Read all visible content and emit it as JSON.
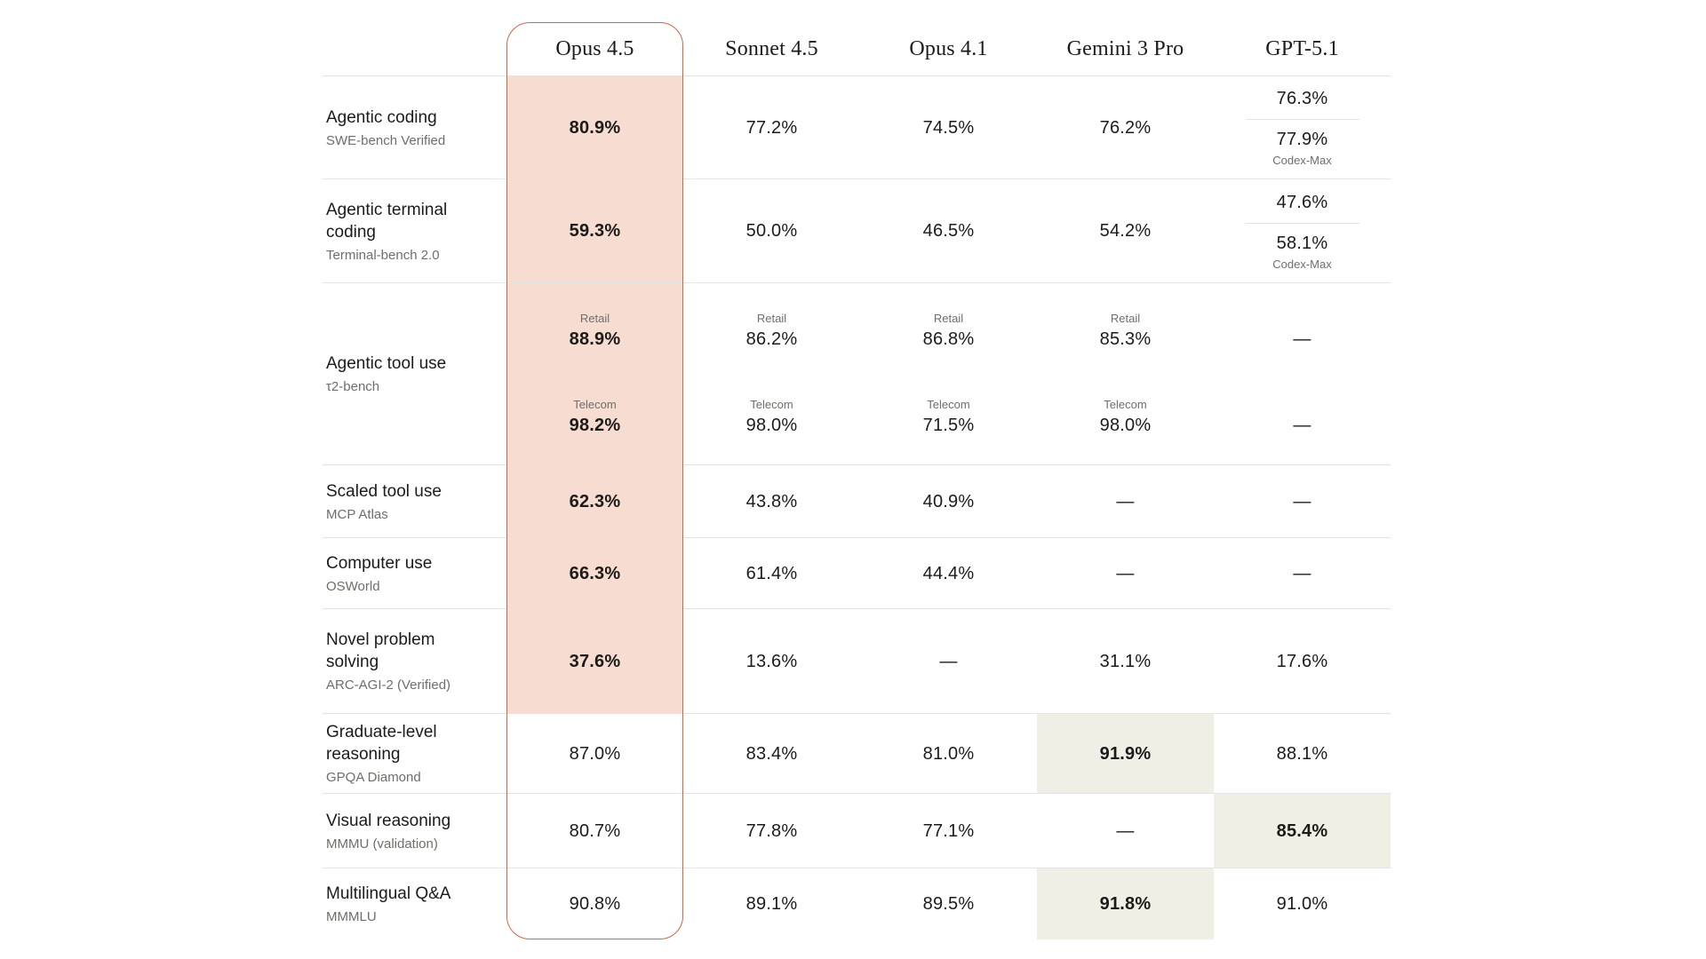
{
  "colors": {
    "accent": "#c96a4a",
    "pink": "#f6dcd1",
    "beige": "#f0efe5",
    "ink": "#1c1b19",
    "muted": "#6f6e69",
    "divider": "rgba(28,27,25,0.12)"
  },
  "chart_data": {
    "type": "table",
    "title": "",
    "legend_position": "none",
    "columns": [
      {
        "label": "Opus 4.5",
        "highlight": "orange-outline-pink-fill"
      },
      {
        "label": "Sonnet 4.5"
      },
      {
        "label": "Opus 4.1"
      },
      {
        "label": "Gemini 3 Pro"
      },
      {
        "label": "GPT-5.1"
      }
    ],
    "rows": [
      {
        "category": "Agentic coding",
        "benchmark": "SWE-bench Verified",
        "cells": [
          {
            "value": "80.9%",
            "bold": true,
            "bg": "pink"
          },
          {
            "value": "77.2%"
          },
          {
            "value": "74.5%"
          },
          {
            "value": "76.2%"
          },
          {
            "stack": [
              {
                "value": "76.3%"
              },
              {
                "value": "77.9%",
                "note": "Codex-Max"
              }
            ]
          }
        ]
      },
      {
        "category": "Agentic terminal coding",
        "benchmark": "Terminal-bench 2.0",
        "cells": [
          {
            "value": "59.3%",
            "bold": true,
            "bg": "pink"
          },
          {
            "value": "50.0%"
          },
          {
            "value": "46.5%"
          },
          {
            "value": "54.2%"
          },
          {
            "stack": [
              {
                "value": "47.6%"
              },
              {
                "value": "58.1%",
                "note": "Codex-Max"
              }
            ]
          }
        ]
      },
      {
        "category": "Agentic tool use",
        "benchmark": "τ2-bench",
        "cells": [
          {
            "bg": "pink",
            "bold": true,
            "groups": [
              {
                "label": "Retail",
                "value": "88.9%"
              },
              {
                "label": "Telecom",
                "value": "98.2%"
              }
            ]
          },
          {
            "groups": [
              {
                "label": "Retail",
                "value": "86.2%"
              },
              {
                "label": "Telecom",
                "value": "98.0%"
              }
            ]
          },
          {
            "groups": [
              {
                "label": "Retail",
                "value": "86.8%"
              },
              {
                "label": "Telecom",
                "value": "71.5%"
              }
            ]
          },
          {
            "groups": [
              {
                "label": "Retail",
                "value": "85.3%"
              },
              {
                "label": "Telecom",
                "value": "98.0%"
              }
            ]
          },
          {
            "groups": [
              {
                "label": "",
                "value": "—"
              },
              {
                "label": "",
                "value": "—"
              }
            ]
          }
        ]
      },
      {
        "category": "Scaled tool use",
        "benchmark": "MCP Atlas",
        "cells": [
          {
            "value": "62.3%",
            "bold": true,
            "bg": "pink"
          },
          {
            "value": "43.8%"
          },
          {
            "value": "40.9%"
          },
          {
            "value": "—"
          },
          {
            "value": "—"
          }
        ]
      },
      {
        "category": "Computer use",
        "benchmark": "OSWorld",
        "cells": [
          {
            "value": "66.3%",
            "bold": true,
            "bg": "pink"
          },
          {
            "value": "61.4%"
          },
          {
            "value": "44.4%"
          },
          {
            "value": "—"
          },
          {
            "value": "—"
          }
        ]
      },
      {
        "category": "Novel problem solving",
        "benchmark": "ARC-AGI-2 (Verified)",
        "cells": [
          {
            "value": "37.6%",
            "bold": true,
            "bg": "pink"
          },
          {
            "value": "13.6%"
          },
          {
            "value": "—"
          },
          {
            "value": "31.1%"
          },
          {
            "value": "17.6%"
          }
        ]
      },
      {
        "category": "Graduate-level reasoning",
        "benchmark": "GPQA Diamond",
        "cells": [
          {
            "value": "87.0%"
          },
          {
            "value": "83.4%"
          },
          {
            "value": "81.0%"
          },
          {
            "value": "91.9%",
            "bold": true,
            "bg": "beige"
          },
          {
            "value": "88.1%"
          }
        ]
      },
      {
        "category": "Visual reasoning",
        "benchmark": "MMMU (validation)",
        "cells": [
          {
            "value": "80.7%"
          },
          {
            "value": "77.8%"
          },
          {
            "value": "77.1%"
          },
          {
            "value": "—"
          },
          {
            "value": "85.4%",
            "bold": true,
            "bg": "beige"
          }
        ]
      },
      {
        "category": "Multilingual Q&A",
        "benchmark": "MMMLU",
        "cells": [
          {
            "value": "90.8%"
          },
          {
            "value": "89.1%"
          },
          {
            "value": "89.5%"
          },
          {
            "value": "91.8%",
            "bold": true,
            "bg": "beige"
          },
          {
            "value": "91.0%"
          }
        ]
      }
    ]
  }
}
